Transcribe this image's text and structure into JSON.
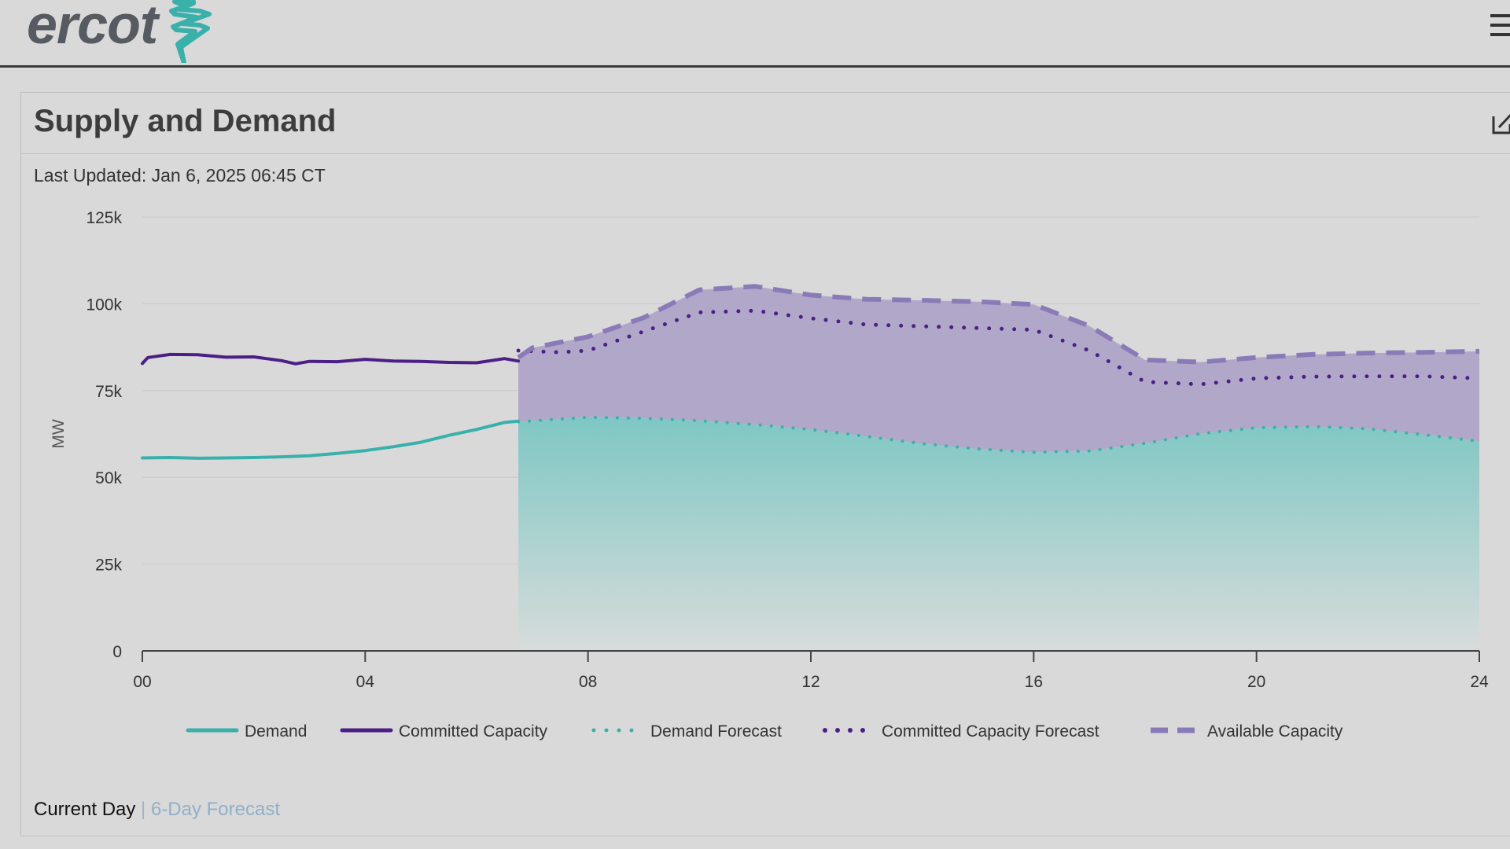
{
  "header": {
    "logo_text": "ercot",
    "logo_icon": "ercot-lightning-mark-icon",
    "menu_icon": "hamburger-menu-icon"
  },
  "card": {
    "title": "Supply and Demand",
    "last_updated": "Last Updated: Jan 6, 2025 06:45 CT",
    "open_icon": "external-open-icon"
  },
  "footer": {
    "current_day": "Current Day",
    "separator": "|",
    "forecast_link": "6-Day Forecast"
  },
  "colors": {
    "demand": "#3ab0aa",
    "committed": "#4b1f86",
    "demand_fill_top": "#7ec7c3",
    "capacity_fill": "#b1a8c9",
    "available": "#8a7bb8",
    "grid": "#c9c9c9"
  },
  "chart_data": {
    "type": "line",
    "title": "",
    "xlabel": "",
    "ylabel": "MW",
    "xlim": [
      0,
      24
    ],
    "ylim": [
      0,
      125000
    ],
    "x_ticks": [
      "00",
      "04",
      "08",
      "12",
      "16",
      "20",
      "24"
    ],
    "x_tick_values": [
      0,
      4,
      8,
      12,
      16,
      20,
      24
    ],
    "y_ticks": [
      "0",
      "25k",
      "50k",
      "75k",
      "100k",
      "125k"
    ],
    "y_tick_values": [
      0,
      25000,
      50000,
      75000,
      100000,
      125000
    ],
    "grid": true,
    "legend_position": "bottom",
    "legend": [
      "Demand",
      "Committed Capacity",
      "Demand Forecast",
      "Committed Capacity Forecast",
      "Available Capacity"
    ],
    "series": [
      {
        "name": "Demand",
        "style": "solid",
        "x": [
          0,
          0.5,
          1,
          1.5,
          2,
          2.5,
          3,
          3.5,
          4,
          4.5,
          5,
          5.5,
          6,
          6.5,
          6.75
        ],
        "values": [
          55600,
          55700,
          55500,
          55600,
          55700,
          55900,
          56200,
          56900,
          57700,
          58800,
          60100,
          62100,
          63800,
          65800,
          66200
        ]
      },
      {
        "name": "Committed Capacity",
        "style": "solid",
        "x": [
          0,
          0.1,
          0.5,
          1,
          1.5,
          2,
          2.5,
          2.75,
          3,
          3.5,
          4,
          4.5,
          5,
          5.5,
          6,
          6.5,
          6.75
        ],
        "values": [
          82800,
          84500,
          85400,
          85300,
          84600,
          84700,
          83600,
          82700,
          83400,
          83300,
          84000,
          83500,
          83400,
          83100,
          83000,
          84200,
          83500
        ]
      },
      {
        "name": "Demand Forecast",
        "style": "dotted",
        "x": [
          6.75,
          8,
          9,
          10,
          11,
          12,
          13,
          14,
          15,
          16,
          17,
          18,
          19,
          20,
          21,
          22,
          23,
          24
        ],
        "values": [
          66000,
          67300,
          67000,
          66300,
          65200,
          63800,
          61800,
          59700,
          58200,
          57200,
          57600,
          59800,
          62600,
          64300,
          64600,
          64000,
          62300,
          60400
        ]
      },
      {
        "name": "Committed Capacity Forecast",
        "style": "dotted",
        "x": [
          6.75,
          7.5,
          8,
          9,
          10,
          11,
          12,
          13,
          14,
          15,
          16,
          17,
          18,
          19,
          20,
          21,
          22,
          23,
          24
        ],
        "values": [
          86500,
          86000,
          86500,
          92000,
          97500,
          98000,
          95800,
          94000,
          93500,
          93000,
          92500,
          86500,
          77500,
          76800,
          78500,
          79000,
          79100,
          79100,
          78500
        ]
      },
      {
        "name": "Available Capacity",
        "style": "dashed",
        "x": [
          6.75,
          7,
          8,
          9,
          10,
          11,
          12,
          13,
          14,
          15,
          16,
          17,
          18,
          19,
          20,
          21,
          22,
          23,
          24
        ],
        "values": [
          84500,
          87300,
          90500,
          96000,
          104000,
          105000,
          102500,
          101300,
          101000,
          100600,
          99800,
          93600,
          83800,
          83200,
          84500,
          85400,
          85800,
          86000,
          86300
        ]
      }
    ]
  }
}
